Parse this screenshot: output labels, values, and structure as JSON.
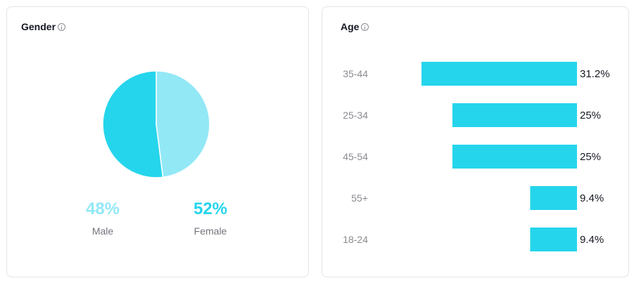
{
  "gender": {
    "title": "Gender",
    "male": {
      "value": "48%",
      "label": "Male",
      "color": "#93e8f6"
    },
    "female": {
      "value": "52%",
      "label": "Female",
      "color": "#25d5ec"
    }
  },
  "age": {
    "title": "Age"
  },
  "chart_data": [
    {
      "type": "pie",
      "title": "Gender",
      "categories": [
        "Male",
        "Female"
      ],
      "values": [
        48,
        52
      ],
      "colors": [
        "#93e8f6",
        "#25d5ec"
      ]
    },
    {
      "type": "bar",
      "orientation": "horizontal",
      "title": "Age",
      "categories": [
        "35-44",
        "25-34",
        "45-54",
        "55+",
        "18-24"
      ],
      "values": [
        31.2,
        25,
        25,
        9.4,
        9.4
      ],
      "value_labels": [
        "31.2%",
        "25%",
        "25%",
        "9.4%",
        "9.4%"
      ],
      "color": "#25d5ec"
    }
  ]
}
